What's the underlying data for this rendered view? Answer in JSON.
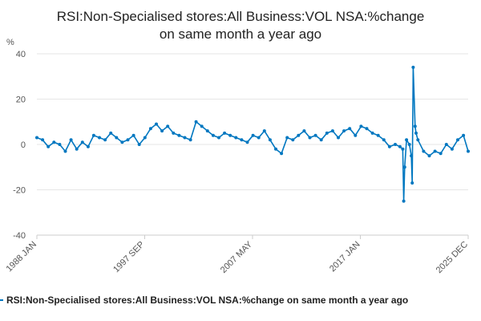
{
  "chart_data": {
    "type": "line",
    "title_lines": [
      "RSI:Non-Specialised stores:All Business:VOL NSA:%change",
      "on same month a year ago"
    ],
    "ylabel": "%",
    "xlabel": "",
    "ylim": [
      -40,
      40
    ],
    "y_ticks": [
      40,
      20,
      0,
      -20,
      -40
    ],
    "x_ticks": [
      "1988 JAN",
      "1997 SEP",
      "2007 MAY",
      "2017 JAN",
      "2025 DEC"
    ],
    "x_range": [
      "1988-01",
      "2025-12"
    ],
    "grid": "horizontal",
    "legend_position": "bottom",
    "line_color": "#0077c0",
    "series": [
      {
        "name": "RSI:Non-Specialised stores:All Business:VOL NSA:%change on same month a year ago",
        "x": [
          "1988-01",
          "1988-07",
          "1989-01",
          "1989-07",
          "1990-01",
          "1990-07",
          "1991-01",
          "1991-07",
          "1992-01",
          "1992-07",
          "1993-01",
          "1993-07",
          "1994-01",
          "1994-07",
          "1995-01",
          "1995-07",
          "1996-01",
          "1996-07",
          "1997-01",
          "1997-07",
          "1998-01",
          "1998-07",
          "1999-01",
          "1999-07",
          "2000-01",
          "2000-07",
          "2001-01",
          "2001-07",
          "2002-01",
          "2002-07",
          "2003-01",
          "2003-07",
          "2004-01",
          "2004-07",
          "2005-01",
          "2005-07",
          "2006-01",
          "2006-07",
          "2007-01",
          "2007-07",
          "2008-01",
          "2008-07",
          "2009-01",
          "2009-07",
          "2010-01",
          "2010-07",
          "2011-01",
          "2011-07",
          "2012-01",
          "2012-07",
          "2013-01",
          "2013-07",
          "2014-01",
          "2014-07",
          "2015-01",
          "2015-07",
          "2016-01",
          "2016-07",
          "2017-01",
          "2017-07",
          "2018-01",
          "2018-07",
          "2019-01",
          "2019-07",
          "2019-12",
          "2020-03",
          "2020-04",
          "2020-05",
          "2020-07",
          "2020-10",
          "2020-12",
          "2021-01",
          "2021-02",
          "2021-04",
          "2021-05",
          "2021-07",
          "2022-01",
          "2022-07",
          "2023-01",
          "2023-07",
          "2024-01",
          "2024-07",
          "2025-01",
          "2025-07",
          "2025-12"
        ],
        "values": [
          3,
          2,
          -1,
          1,
          0,
          -3,
          2,
          -2,
          1,
          -1,
          4,
          3,
          2,
          5,
          3,
          1,
          2,
          4,
          0,
          3,
          7,
          9,
          6,
          8,
          5,
          4,
          3,
          2,
          10,
          8,
          6,
          4,
          3,
          5,
          4,
          3,
          2,
          1,
          4,
          3,
          6,
          2,
          -2,
          -4,
          3,
          2,
          4,
          6,
          3,
          4,
          2,
          5,
          6,
          3,
          6,
          7,
          4,
          8,
          7,
          5,
          4,
          2,
          -1,
          0,
          -1,
          -2,
          -25,
          -10,
          2,
          0,
          -5,
          -17,
          34,
          8,
          5,
          2,
          -3,
          -5,
          -3,
          -4,
          0,
          -2,
          2,
          4,
          -3
        ]
      }
    ]
  }
}
